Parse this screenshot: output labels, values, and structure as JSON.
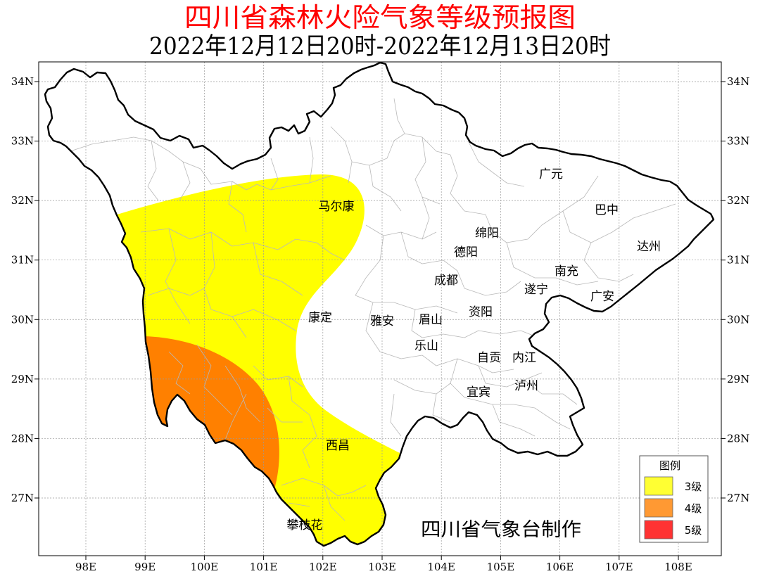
{
  "title": "四川省森林火险气象等级预报图",
  "title_color": "#FF0000",
  "subtitle": "2022年12月12日20时-2022年12月13日20时",
  "axis": {
    "lat_labels": [
      "34N",
      "33N",
      "32N",
      "31N",
      "30N",
      "29N",
      "28N",
      "27N"
    ],
    "lon_labels": [
      "98E",
      "99E",
      "100E",
      "101E",
      "102E",
      "103E",
      "104E",
      "105E",
      "106E",
      "107E",
      "108E"
    ]
  },
  "cities": [
    "广元",
    "巴中",
    "达州",
    "马尔康",
    "绵阳",
    "德阳",
    "南充",
    "成都",
    "遂宁",
    "广安",
    "康定",
    "雅安",
    "眉山",
    "资阳",
    "乐山",
    "自贡",
    "内江",
    "宜宾",
    "泸州",
    "西昌",
    "攀枝花"
  ],
  "map_colors": {
    "level_3": "#FFFF00",
    "level_4": "#FF8000",
    "border": "#000000"
  },
  "legend": {
    "title": "图例",
    "items": [
      {
        "label": "3级",
        "color": "#FFFF33"
      },
      {
        "label": "4级",
        "color": "#FF9933"
      },
      {
        "label": "5级",
        "color": "#FF3333"
      }
    ]
  },
  "credit": "四川省气象台制作"
}
